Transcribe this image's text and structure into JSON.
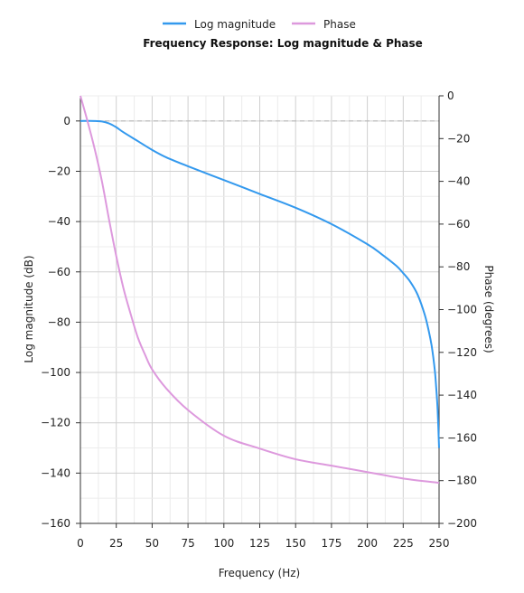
{
  "chart_data": {
    "type": "line",
    "title": "Frequency Response: Log magnitude & Phase",
    "xlabel": "Frequency (Hz)",
    "ylabel_left": "Log magnitude (dB)",
    "ylabel_right": "Phase (degrees)",
    "xlim": [
      0,
      250
    ],
    "ylim_left": [
      -160,
      10
    ],
    "ylim_right": [
      -200,
      0
    ],
    "x_ticks": [
      0,
      25,
      50,
      75,
      100,
      125,
      150,
      175,
      200,
      225,
      250
    ],
    "y_left_ticks": [
      0,
      -20,
      -40,
      -60,
      -80,
      -100,
      -120,
      -140,
      -160
    ],
    "y_right_ticks": [
      0,
      -20,
      -40,
      -60,
      -80,
      -100,
      -120,
      -140,
      -160,
      -180,
      -200
    ],
    "grid": true,
    "legend": "top-center",
    "reference_line": {
      "axis": "left",
      "y": 0,
      "style": "dashed"
    },
    "series": [
      {
        "name": "Log magnitude",
        "axis": "left",
        "color": "#3399ee",
        "x": [
          0,
          10,
          15,
          20,
          25,
          30,
          40,
          50,
          60,
          75,
          100,
          125,
          150,
          175,
          200,
          210,
          220,
          225,
          230,
          235,
          240,
          243,
          245,
          247,
          248,
          249,
          250
        ],
        "y": [
          0,
          0,
          -0.2,
          -1,
          -2.5,
          -4.5,
          -8,
          -11.5,
          -14.5,
          -18,
          -23.5,
          -29,
          -34.5,
          -41,
          -49,
          -53,
          -57.5,
          -60.5,
          -64,
          -69,
          -77,
          -84,
          -90,
          -99,
          -106,
          -115,
          -130
        ]
      },
      {
        "name": "Phase",
        "axis": "right",
        "color": "#dd99dd",
        "x": [
          0,
          5,
          10,
          15,
          20,
          25,
          30,
          35,
          40,
          45,
          50,
          60,
          75,
          100,
          125,
          150,
          175,
          200,
          225,
          250
        ],
        "y": [
          0,
          -12,
          -25,
          -40,
          -58,
          -75,
          -90,
          -102,
          -113,
          -121,
          -128,
          -137,
          -147,
          -159,
          -165,
          -170,
          -173,
          -176,
          -179,
          -181
        ]
      }
    ]
  }
}
